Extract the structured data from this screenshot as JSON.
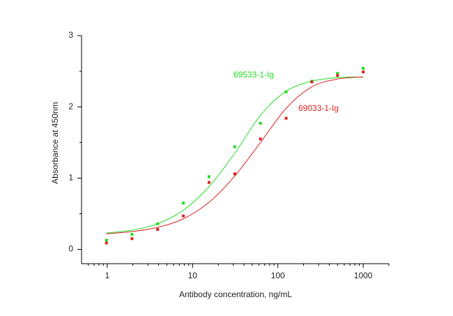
{
  "chart_data": {
    "type": "scatter",
    "x_label": "Antibody concentration, ng/mL",
    "y_label": "Absorbance at 450nm",
    "log_x": true,
    "xlim": [
      0.5,
      2000
    ],
    "xticks": [
      1,
      10,
      100,
      1000
    ],
    "xminorticks": [
      0.6,
      0.7,
      0.8,
      0.9,
      2,
      3,
      4,
      5,
      6,
      7,
      8,
      9,
      20,
      30,
      40,
      50,
      60,
      70,
      80,
      90,
      200,
      300,
      400,
      500,
      600,
      700,
      800,
      900,
      2000
    ],
    "ylim": [
      -0.2,
      3
    ],
    "yticks": [
      0,
      1,
      2,
      3
    ],
    "yminorticks": [
      0.5,
      1.5,
      2.5
    ],
    "x": [
      0.98,
      1.95,
      3.9,
      7.8,
      15.6,
      31.25,
      62.5,
      125,
      250,
      500,
      1000
    ],
    "series": [
      {
        "name": "69533-1-Ig",
        "color": "#22dd22",
        "values": [
          0.13,
          0.21,
          0.36,
          0.65,
          1.02,
          1.44,
          1.77,
          2.21,
          2.36,
          2.47,
          2.54
        ],
        "fit": [
          0.23,
          0.27,
          0.36,
          0.55,
          0.88,
          1.35,
          1.88,
          2.22,
          2.36,
          2.41,
          2.42
        ]
      },
      {
        "name": "69033-1-Ig",
        "color": "#dd2222",
        "values": [
          0.09,
          0.15,
          0.28,
          0.47,
          0.94,
          1.06,
          1.55,
          1.84,
          2.35,
          2.44,
          2.49
        ],
        "fit": [
          0.22,
          0.25,
          0.31,
          0.43,
          0.66,
          1.03,
          1.5,
          1.98,
          2.28,
          2.39,
          2.42
        ]
      }
    ]
  }
}
